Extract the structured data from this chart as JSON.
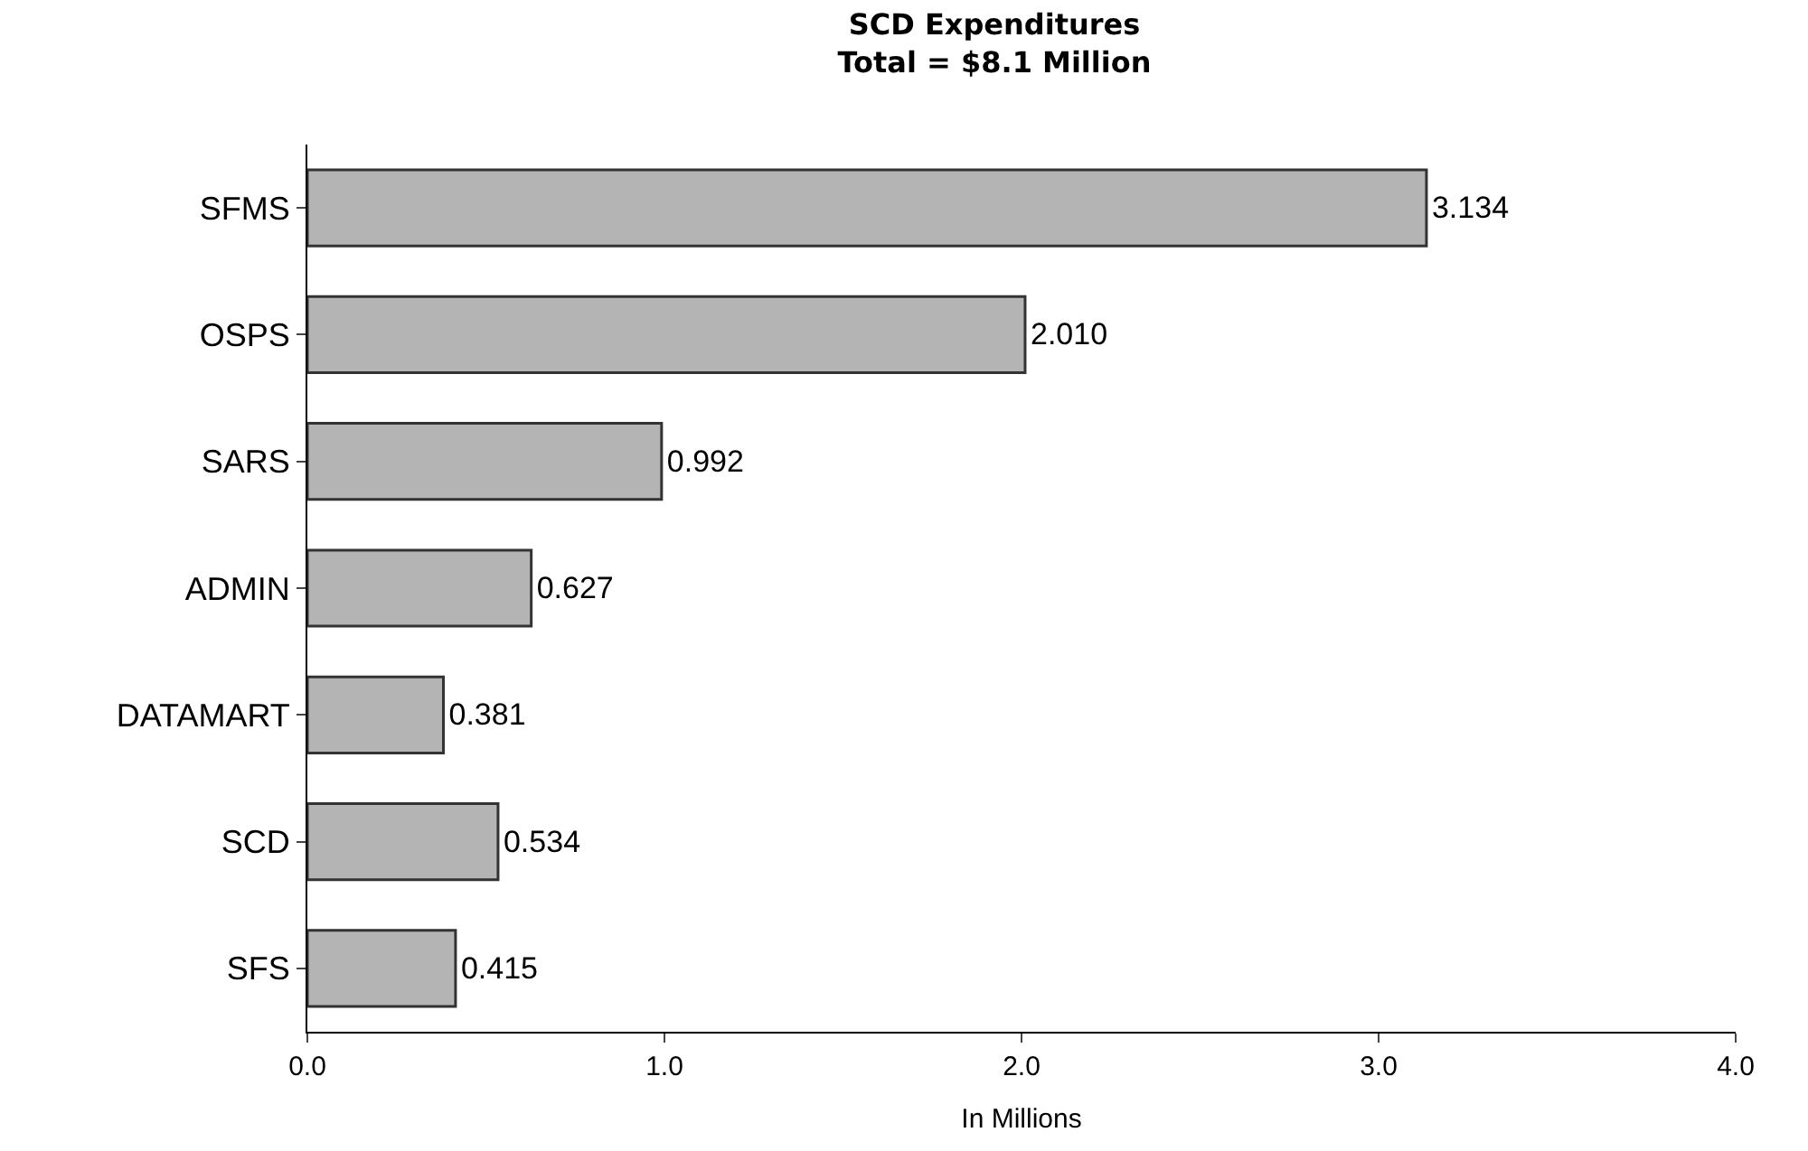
{
  "chart_data": {
    "type": "bar",
    "orientation": "horizontal",
    "title": "SCD Expenditures\nTotal = $8.1 Million",
    "xlabel": "In Millions",
    "categories": [
      "SFMS",
      "OSPS",
      "SARS",
      "ADMIN",
      "DATAMART",
      "SCD",
      "SFS"
    ],
    "values": [
      3.134,
      2.01,
      0.992,
      0.627,
      0.381,
      0.534,
      0.415
    ],
    "value_labels": [
      "3.134",
      "2.010",
      "0.992",
      "0.627",
      "0.381",
      "0.534",
      "0.415"
    ],
    "color": "#b4b4b4",
    "xlim": [
      0,
      4
    ],
    "xticks": [
      {
        "value": 0,
        "label": "0.0"
      },
      {
        "value": 1,
        "label": "1.0"
      },
      {
        "value": 2,
        "label": "2.0"
      },
      {
        "value": 3,
        "label": "3.0"
      },
      {
        "value": 4,
        "label": "4.0"
      }
    ],
    "data_labels": false
  }
}
